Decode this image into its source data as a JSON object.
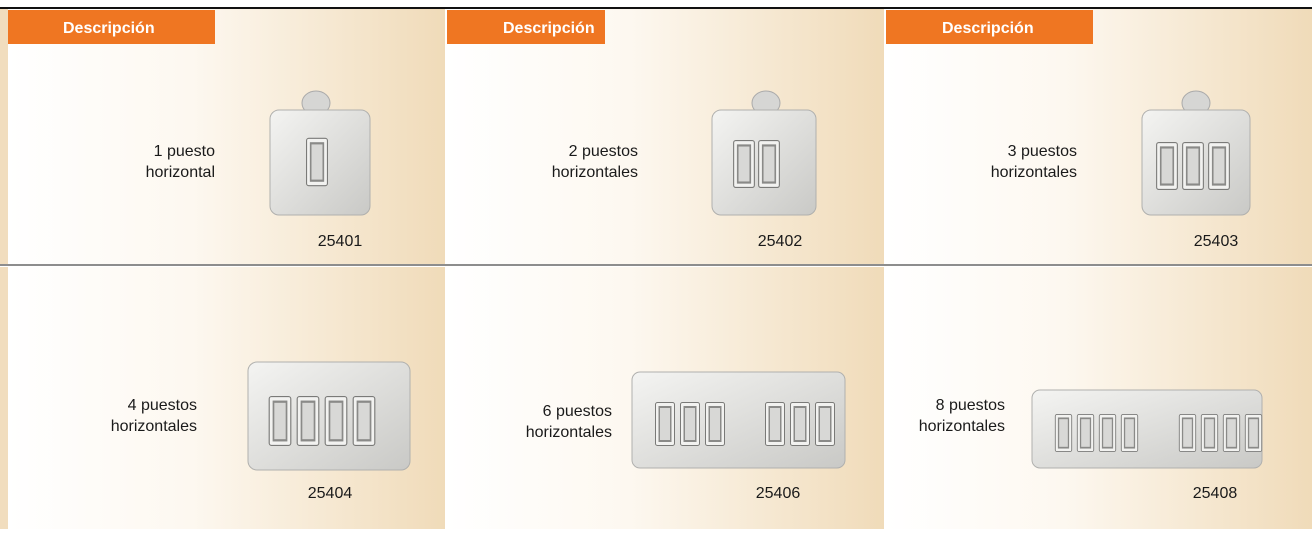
{
  "header": {
    "columns": [
      "Descripción",
      "Descripción",
      "Descripción"
    ]
  },
  "products": [
    {
      "description": [
        "1 puesto",
        "horizontal"
      ],
      "code": "25401"
    },
    {
      "description": [
        "2 puestos",
        "horizontales"
      ],
      "code": "25402"
    },
    {
      "description": [
        "3 puestos",
        "horizontales"
      ],
      "code": "25403"
    },
    {
      "description": [
        "4 puestos",
        "horizontales"
      ],
      "code": "25404"
    },
    {
      "description": [
        "6 puestos",
        "horizontales"
      ],
      "code": "25406"
    },
    {
      "description": [
        "8 puestos",
        "horizontales"
      ],
      "code": "25408"
    }
  ]
}
